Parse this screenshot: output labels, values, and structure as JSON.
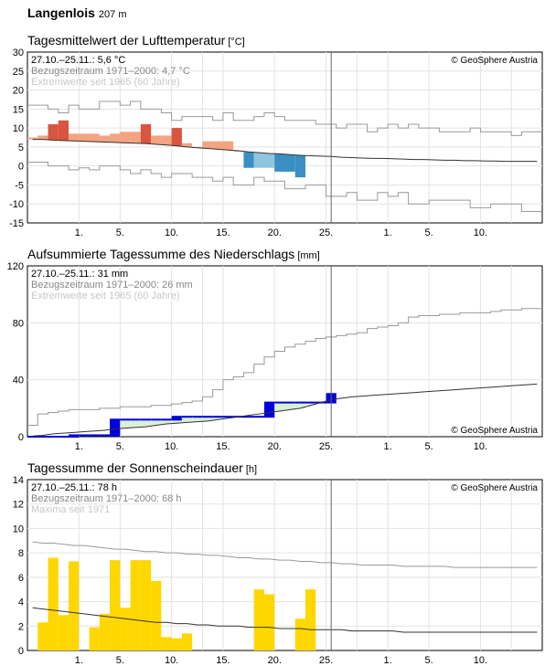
{
  "station": {
    "name": "Langenlois",
    "altitude": "207 m"
  },
  "colors": {
    "warm_dark": "#d9553e",
    "warm_light": "#f4a382",
    "cold_light": "#8fc5df",
    "cold_dark": "#3a8fc4",
    "precip_bar": "#0000dd",
    "precip_fill": "#d8f0d8",
    "sun_bar": "#ffd700",
    "ref_line": "#333333",
    "extreme_line": "#999999"
  },
  "x_tick_labels": [
    "1.",
    "5.",
    "10.",
    "15.",
    "20.",
    "25.",
    "1.",
    "5.",
    "10."
  ],
  "panels": {
    "temperature": {
      "title": "Tagesmittelwert der Lufttemperatur",
      "unit": "[°C]",
      "legend": {
        "current": "27.10.–25.11.: 5,6 °C",
        "reference": "Bezugszeitraum 1971–2000: 4,7 °C",
        "extremes": "Extremwerte seit 1965 (60 Jahre)"
      },
      "copyright": "© GeoSphere Austria",
      "y_ticks": [
        "30",
        "25",
        "20",
        "15",
        "10",
        "5",
        "0",
        "-5",
        "-10",
        "-15"
      ]
    },
    "precipitation": {
      "title": "Aufsummierte Tagessumme des Niederschlags",
      "unit": "[mm]",
      "legend": {
        "current": "27.10.–25.11.: 31 mm",
        "reference": "Bezugszeitraum 1971–2000: 26 mm",
        "extremes": "Extremwerte seit 1965 (60 Jahre)"
      },
      "copyright": "© GeoSphere Austria",
      "y_ticks": [
        "120",
        "80",
        "40",
        "0"
      ]
    },
    "sunshine": {
      "title": "Tagessumme der Sonnenscheindauer",
      "unit": "[h]",
      "legend": {
        "current": "27.10.–25.11.: 78 h",
        "reference": "Bezugszeitraum 1971–2000: 68 h",
        "extremes": "Maxima seit 1971"
      },
      "copyright": "© GeoSphere Austria",
      "y_ticks": [
        "14",
        "12",
        "10",
        "8",
        "6",
        "4",
        "2",
        "0"
      ]
    }
  },
  "chart_data": [
    {
      "type": "bar",
      "title": "Tagesmittelwert der Lufttemperatur",
      "ylabel": "°C",
      "ylim": [
        -15,
        30
      ],
      "x_days": 50,
      "current_day_index": 29,
      "current": [
        7.5,
        8,
        11,
        12,
        8.5,
        8.5,
        8.5,
        8,
        8.5,
        9,
        9,
        11,
        8,
        8,
        10,
        6,
        5,
        6.5,
        6.5,
        6.5,
        4,
        -0.5,
        -0.5,
        -0.5,
        -1.5,
        -1.5,
        -3
      ],
      "reference": [
        7,
        7,
        6.8,
        6.7,
        6.6,
        6.5,
        6.4,
        6.3,
        6.2,
        6.1,
        6,
        5.9,
        5.7,
        5.5,
        5.3,
        5,
        4.8,
        4.6,
        4.4,
        4.2,
        4,
        3.7,
        3.5,
        3.3,
        3.2,
        3,
        2.8,
        2.7,
        2.6,
        2.5,
        2.3,
        2.2,
        2.1,
        2,
        2,
        1.9,
        1.8,
        1.7,
        1.7,
        1.6,
        1.5,
        1.5,
        1.4,
        1.4,
        1.3,
        1.3,
        1.2,
        1.2,
        1.2,
        1.2
      ],
      "extreme_max": [
        16,
        16,
        15,
        14,
        16,
        15,
        15,
        17,
        17,
        16,
        17,
        15,
        15,
        14,
        12,
        13,
        13,
        13,
        12,
        14,
        12,
        12,
        13,
        14,
        13,
        12,
        12,
        12,
        11,
        11,
        10,
        11,
        11,
        9,
        10,
        11,
        10,
        11,
        10,
        10,
        9,
        9,
        9,
        10,
        9,
        9,
        9,
        8,
        9,
        9
      ],
      "extreme_min": [
        1,
        1,
        0,
        0,
        -1,
        -0.5,
        -1,
        0,
        0,
        -1,
        -2,
        -1,
        -2,
        -3,
        -2,
        -2,
        -3,
        -3,
        -4,
        -3,
        -5,
        -5,
        -3,
        -4,
        -4,
        -6,
        -6,
        -5,
        -5,
        -8,
        -8,
        -7,
        -9,
        -9,
        -7,
        -8,
        -7,
        -10,
        -10,
        -9,
        -9,
        -9,
        -9,
        -11,
        -11,
        -10,
        -10,
        -10,
        -12,
        -12
      ]
    },
    {
      "type": "area",
      "title": "Aufsummierte Tagessumme des Niederschlags",
      "ylabel": "mm",
      "ylim": [
        0,
        120
      ],
      "x_days": 50,
      "current_day_index": 29,
      "current_cumulative": [
        0,
        0,
        0,
        0,
        1,
        1,
        1,
        1,
        12,
        12,
        12,
        12,
        12,
        12,
        14,
        14,
        14,
        14,
        14,
        14,
        14,
        14,
        14,
        24,
        24,
        24,
        24,
        24,
        24,
        30
      ],
      "reference_cumulative": [
        0.5,
        1,
        2,
        2.5,
        3,
        3.5,
        4,
        4.5,
        5.5,
        6,
        6.5,
        7,
        8,
        9,
        9.5,
        10,
        10.5,
        11,
        12,
        13,
        14,
        15,
        16,
        17,
        18,
        19,
        20,
        22,
        24,
        26,
        27,
        28,
        28.5,
        29,
        29.5,
        30,
        30.5,
        31,
        31.5,
        32,
        32.5,
        33,
        33.5,
        34,
        34.5,
        35,
        35.5,
        36,
        36.5,
        37
      ],
      "extreme_max_cumulative": [
        8,
        16,
        17,
        18,
        19,
        19,
        19,
        20,
        20,
        21,
        21,
        21,
        22,
        22,
        23,
        24,
        25,
        28,
        33,
        40,
        42,
        45,
        51,
        56,
        60,
        63,
        65,
        67,
        69,
        70,
        71,
        72,
        73,
        76,
        77,
        78,
        80,
        84,
        85,
        85,
        86,
        86,
        87,
        87,
        87,
        88,
        89,
        89,
        90,
        90
      ]
    },
    {
      "type": "bar",
      "title": "Tagessumme der Sonnenscheindauer",
      "ylabel": "h",
      "ylim": [
        0,
        14
      ],
      "x_days": 50,
      "current_day_index": 29,
      "current": [
        0,
        2.3,
        7.6,
        2.9,
        7.3,
        0,
        1.9,
        3.0,
        7.4,
        3.5,
        7.4,
        7.4,
        5.7,
        1.1,
        1.0,
        1.4,
        0,
        0,
        0,
        0,
        0,
        0,
        5.0,
        4.6,
        0,
        0,
        2.6,
        5.0,
        0
      ],
      "reference": [
        3.5,
        3.4,
        3.3,
        3.2,
        3.1,
        3.0,
        2.9,
        2.8,
        2.7,
        2.6,
        2.5,
        2.4,
        2.3,
        2.3,
        2.2,
        2.2,
        2.1,
        2.1,
        2.0,
        2.0,
        2.0,
        1.9,
        1.9,
        1.9,
        1.8,
        1.8,
        1.8,
        1.7,
        1.7,
        1.7,
        1.7,
        1.6,
        1.6,
        1.6,
        1.6,
        1.6,
        1.5,
        1.5,
        1.5,
        1.5,
        1.5,
        1.5,
        1.5,
        1.5,
        1.5,
        1.5,
        1.5,
        1.5,
        1.5,
        1.5
      ],
      "maxima": [
        8.9,
        8.8,
        8.8,
        8.7,
        8.6,
        8.6,
        8.5,
        8.4,
        8.3,
        8.3,
        8.2,
        8.1,
        8.1,
        8.0,
        8.0,
        7.9,
        7.9,
        7.8,
        7.8,
        7.7,
        7.6,
        7.6,
        7.5,
        7.5,
        7.4,
        7.4,
        7.3,
        7.3,
        7.2,
        7.2,
        7.1,
        7.1,
        7.0,
        7.0,
        7.0,
        7.0,
        6.9,
        6.9,
        6.9,
        6.9,
        6.9,
        6.8,
        6.8,
        6.8,
        6.8,
        6.8,
        6.8,
        6.8,
        6.8,
        6.8
      ]
    }
  ]
}
